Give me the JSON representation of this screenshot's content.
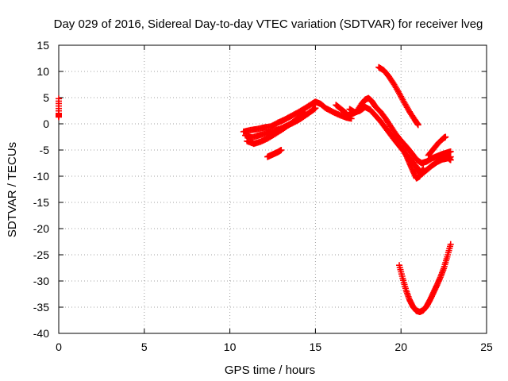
{
  "chart_data": {
    "type": "scatter",
    "title": "Day 029 of 2016, Sidereal Day-to-day VTEC variation (SDTVAR) for receiver lveg",
    "xlabel": "GPS time / hours",
    "ylabel": "SDTVAR / TECUs",
    "xlim": [
      0,
      25
    ],
    "ylim": [
      -40,
      15
    ],
    "xticks": [
      0,
      5,
      10,
      15,
      20,
      25
    ],
    "yticks": [
      15,
      10,
      5,
      0,
      -5,
      -10,
      -15,
      -20,
      -25,
      -30,
      -35,
      -40
    ],
    "grid": true,
    "legend": "none",
    "marker": "plus",
    "color": "#ff0000",
    "series": [
      {
        "values": [
          [
            0.0,
            4.8
          ],
          [
            0.0,
            2.0
          ],
          [
            0.0,
            1.3
          ]
        ]
      },
      {
        "values": [
          [
            10.8,
            -1.5
          ],
          [
            11.2,
            -1.2
          ],
          [
            11.6,
            -1.0
          ],
          [
            12.0,
            -0.7
          ],
          [
            12.4,
            -0.5
          ],
          [
            12.8,
            0.2
          ],
          [
            13.2,
            0.8
          ],
          [
            13.6,
            1.5
          ],
          [
            14.0,
            2.2
          ],
          [
            14.4,
            3.0
          ],
          [
            14.8,
            3.8
          ],
          [
            15.0,
            4.2
          ],
          [
            15.3,
            3.8
          ],
          [
            15.6,
            3.0
          ],
          [
            16.0,
            2.3
          ],
          [
            16.4,
            1.7
          ],
          [
            16.8,
            1.2
          ],
          [
            17.1,
            1.0
          ]
        ]
      },
      {
        "values": [
          [
            10.9,
            -2.2
          ],
          [
            11.3,
            -2.6
          ],
          [
            11.7,
            -2.2
          ],
          [
            12.1,
            -1.8
          ],
          [
            12.5,
            -1.4
          ],
          [
            12.9,
            -1.0
          ],
          [
            13.3,
            -0.4
          ],
          [
            13.7,
            0.2
          ],
          [
            14.1,
            0.9
          ],
          [
            14.5,
            1.8
          ],
          [
            14.8,
            2.5
          ],
          [
            15.0,
            3.0
          ]
        ]
      },
      {
        "values": [
          [
            11.0,
            -3.3
          ],
          [
            11.4,
            -3.8
          ],
          [
            11.8,
            -3.4
          ],
          [
            12.2,
            -2.8
          ],
          [
            12.6,
            -2.0
          ],
          [
            13.0,
            -1.2
          ],
          [
            13.4,
            -0.3
          ],
          [
            13.8,
            0.6
          ],
          [
            14.1,
            1.4
          ],
          [
            14.4,
            2.2
          ]
        ]
      },
      {
        "values": [
          [
            12.2,
            -6.3
          ],
          [
            12.4,
            -6.0
          ],
          [
            12.6,
            -5.7
          ],
          [
            12.8,
            -5.4
          ],
          [
            13.0,
            -5.0
          ]
        ]
      },
      {
        "values": [
          [
            16.2,
            3.6
          ],
          [
            16.5,
            2.8
          ],
          [
            16.8,
            2.0
          ]
        ]
      },
      {
        "values": [
          [
            16.8,
            1.6
          ],
          [
            17.1,
            1.8
          ],
          [
            17.4,
            2.3
          ],
          [
            17.7,
            3.8
          ],
          [
            17.9,
            4.6
          ],
          [
            18.1,
            4.9
          ],
          [
            18.3,
            4.3
          ],
          [
            18.5,
            3.3
          ],
          [
            18.8,
            2.3
          ],
          [
            19.1,
            1.0
          ],
          [
            19.4,
            -0.5
          ],
          [
            19.7,
            -2.0
          ],
          [
            20.0,
            -3.2
          ],
          [
            20.3,
            -4.3
          ],
          [
            20.6,
            -5.5
          ],
          [
            20.9,
            -6.8
          ],
          [
            21.2,
            -7.5
          ],
          [
            21.5,
            -7.2
          ],
          [
            21.8,
            -6.6
          ],
          [
            22.1,
            -6.2
          ],
          [
            22.4,
            -5.8
          ],
          [
            22.7,
            -5.5
          ],
          [
            22.9,
            -5.3
          ]
        ]
      },
      {
        "values": [
          [
            17.0,
            2.8
          ],
          [
            17.3,
            2.2
          ],
          [
            17.6,
            2.5
          ],
          [
            17.9,
            3.2
          ],
          [
            18.2,
            2.7
          ],
          [
            18.5,
            1.6
          ],
          [
            18.8,
            0.5
          ],
          [
            19.1,
            -0.8
          ],
          [
            19.4,
            -2.1
          ],
          [
            19.7,
            -3.4
          ],
          [
            20.0,
            -4.6
          ],
          [
            20.3,
            -5.8
          ],
          [
            20.6,
            -7.0
          ],
          [
            20.9,
            -8.2
          ],
          [
            21.0,
            -9.0
          ],
          [
            21.2,
            -9.6
          ],
          [
            21.5,
            -8.8
          ],
          [
            21.8,
            -8.0
          ],
          [
            22.1,
            -7.3
          ],
          [
            22.4,
            -6.8
          ],
          [
            22.7,
            -6.6
          ],
          [
            22.9,
            -6.3
          ]
        ]
      },
      {
        "values": [
          [
            20.1,
            -4.8
          ],
          [
            20.3,
            -6.0
          ],
          [
            20.5,
            -7.5
          ],
          [
            20.7,
            -9.0
          ],
          [
            20.9,
            -10.4
          ],
          [
            21.1,
            -10.0
          ],
          [
            21.3,
            -8.5
          ]
        ]
      },
      {
        "values": [
          [
            21.6,
            -6.0
          ],
          [
            21.9,
            -4.8
          ],
          [
            22.2,
            -3.6
          ],
          [
            22.5,
            -2.7
          ],
          [
            22.6,
            -2.5
          ]
        ]
      },
      {
        "values": [
          [
            22.8,
            -6.6
          ],
          [
            22.9,
            -6.9
          ]
        ]
      },
      {
        "values": [
          [
            18.7,
            10.8
          ],
          [
            19.0,
            10.2
          ],
          [
            19.3,
            9.0
          ],
          [
            19.6,
            7.5
          ],
          [
            19.9,
            5.8
          ],
          [
            20.2,
            4.0
          ],
          [
            20.5,
            2.3
          ],
          [
            20.8,
            0.8
          ],
          [
            21.0,
            -0.2
          ]
        ]
      },
      {
        "values": [
          [
            19.9,
            -27.0
          ],
          [
            20.1,
            -29.5
          ],
          [
            20.3,
            -31.8
          ],
          [
            20.5,
            -33.6
          ],
          [
            20.7,
            -34.9
          ],
          [
            20.9,
            -35.7
          ],
          [
            21.1,
            -35.9
          ],
          [
            21.3,
            -35.6
          ],
          [
            21.5,
            -34.8
          ],
          [
            21.7,
            -33.6
          ],
          [
            21.9,
            -32.2
          ],
          [
            22.1,
            -30.8
          ],
          [
            22.3,
            -29.3
          ],
          [
            22.5,
            -27.6
          ],
          [
            22.7,
            -25.4
          ],
          [
            22.9,
            -23.0
          ]
        ]
      }
    ]
  }
}
